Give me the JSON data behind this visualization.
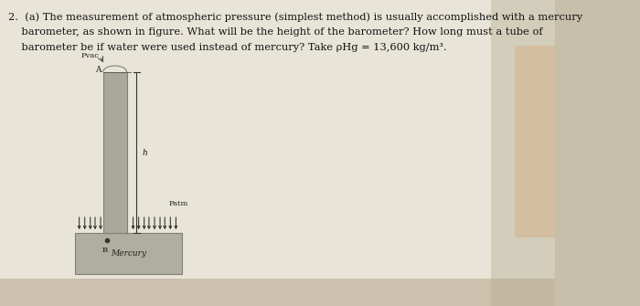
{
  "bg_color": "#c8bfaa",
  "paper_color": "#ddd8c8",
  "paper_inner_color": "#e8e4d8",
  "text_line1": "2.  (a) The measurement of atmospheric pressure (simplest method) is usually accomplished with a mercury",
  "text_line2": "    barometer, as shown in figure. What will be the height of the barometer? How long must a tube of",
  "text_line3": "    barometer be if water were used instead of mercury? Take ρHg = 13,600 kg/m³.",
  "label_pvac": "Pvac",
  "label_A": "A",
  "label_h": "h",
  "label_Patm": "Patm",
  "label_B": "B",
  "label_Mercury": "Mercury",
  "tube_gray": "#aaa89a",
  "tube_edge": "#808070",
  "trough_gray": "#b0ae9e",
  "trough_edge": "#808070",
  "arrow_color": "#222222",
  "text_color": "#111111",
  "hand_color": "#d4b896"
}
